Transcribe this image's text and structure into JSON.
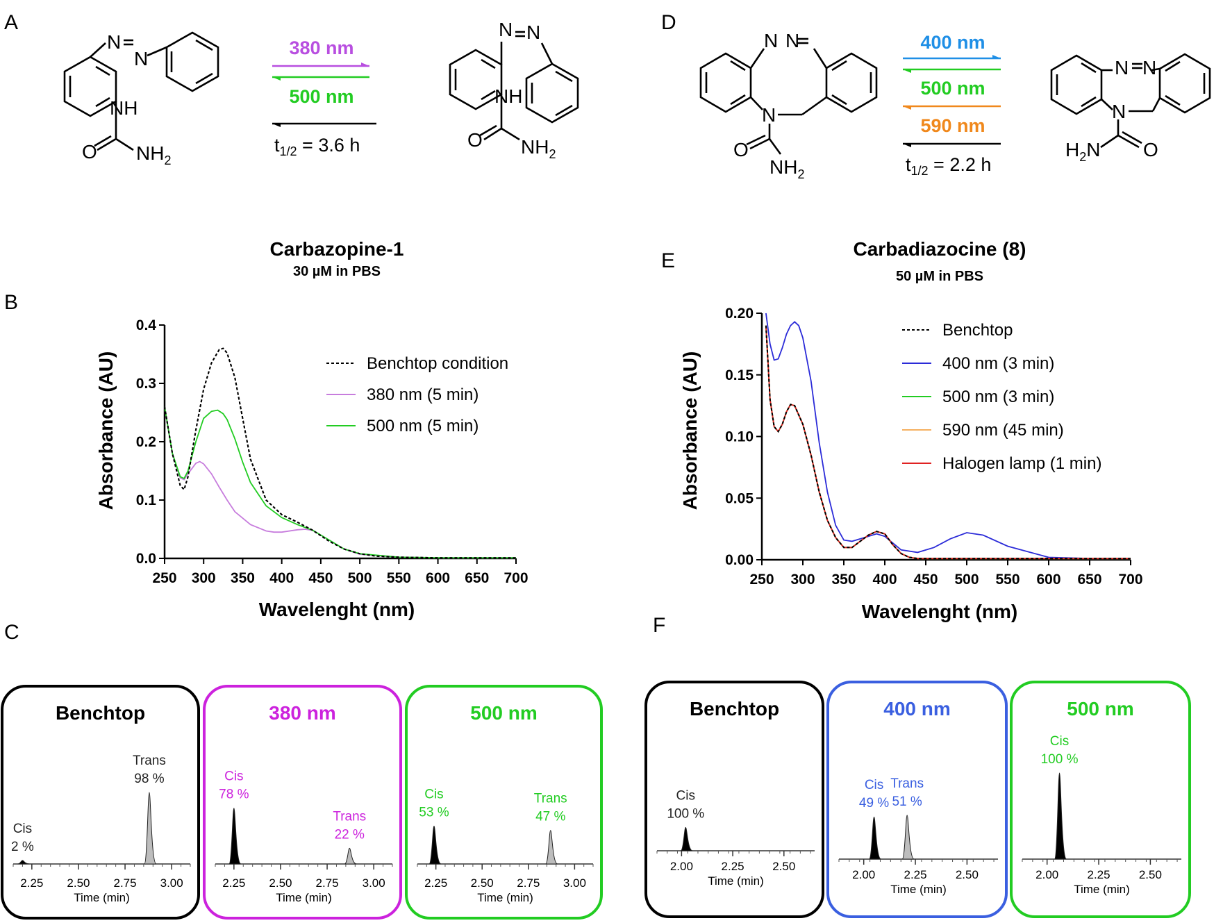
{
  "panels": {
    "A": "A",
    "B": "B",
    "C": "C",
    "D": "D",
    "E": "E",
    "F": "F"
  },
  "scheme_A": {
    "forward": "380 nm",
    "backward": "500 nm",
    "thermal": "t",
    "thermal_sub": "1/2",
    "thermal_rest": " = 3.6 h",
    "atoms": {
      "N": "N",
      "NH": "NH",
      "O": "O",
      "NH2": "NH",
      "sub2": "2"
    }
  },
  "scheme_D": {
    "arrow1": "400 nm",
    "arrow2": "500 nm",
    "arrow3": "590 nm",
    "thermal": "t",
    "thermal_sub": "1/2",
    "thermal_rest": " = 2.2 h",
    "atoms": {
      "N": "N",
      "O": "O",
      "NH2": "NH",
      "H2N": "H",
      "sub2": "2"
    }
  },
  "colors": {
    "purple": "#b84ee0",
    "green": "#22cc22",
    "blue": "#1f8fe6",
    "orange": "#f0881c",
    "magenta": "#cc22dd",
    "royal": "#3a5fe0",
    "red": "#e02222",
    "dark_blue": "#2b2bd8"
  },
  "chart_data": [
    {
      "type": "line",
      "title": "Carbazopine-1",
      "subtitle": "30 µM in PBS",
      "xlabel": "Wavelenght (nm)",
      "ylabel": "Absorbance (AU)",
      "xlim": [
        250,
        700
      ],
      "ylim": [
        0,
        0.4
      ],
      "xticks": [
        "250",
        "300",
        "350",
        "400",
        "450",
        "500",
        "550",
        "600",
        "650",
        "700"
      ],
      "yticks": [
        "0.0",
        "0.1",
        "0.2",
        "0.3",
        "0.4"
      ],
      "legend_position": "top-right",
      "series": [
        {
          "name": "Benchtop condition",
          "color": "#000000",
          "dash": true,
          "x": [
            250,
            260,
            270,
            275,
            280,
            290,
            300,
            310,
            320,
            325,
            330,
            340,
            350,
            360,
            380,
            400,
            420,
            440,
            460,
            480,
            500,
            520,
            550,
            600,
            650,
            700
          ],
          "y": [
            0.26,
            0.18,
            0.125,
            0.118,
            0.14,
            0.22,
            0.29,
            0.335,
            0.358,
            0.36,
            0.352,
            0.31,
            0.24,
            0.17,
            0.1,
            0.075,
            0.062,
            0.048,
            0.03,
            0.016,
            0.008,
            0.004,
            0.002,
            0.001,
            0.001,
            0.001
          ]
        },
        {
          "name": "380 nm (5 min)",
          "color": "#c77ddd",
          "dash": false,
          "x": [
            250,
            260,
            270,
            275,
            280,
            290,
            295,
            300,
            310,
            320,
            330,
            340,
            360,
            380,
            390,
            400,
            420,
            430,
            440,
            460,
            480,
            500,
            550,
            600,
            650,
            700
          ],
          "y": [
            0.26,
            0.18,
            0.138,
            0.135,
            0.145,
            0.163,
            0.166,
            0.162,
            0.145,
            0.122,
            0.1,
            0.08,
            0.058,
            0.047,
            0.045,
            0.045,
            0.049,
            0.05,
            0.048,
            0.032,
            0.016,
            0.007,
            0.002,
            0.001,
            0.001,
            0.001
          ]
        },
        {
          "name": "500 nm (5 min)",
          "color": "#22cc22",
          "dash": false,
          "x": [
            250,
            260,
            270,
            275,
            280,
            290,
            300,
            310,
            318,
            325,
            330,
            340,
            350,
            360,
            380,
            400,
            420,
            440,
            460,
            480,
            500,
            550,
            600,
            650,
            700
          ],
          "y": [
            0.26,
            0.18,
            0.14,
            0.137,
            0.15,
            0.2,
            0.24,
            0.252,
            0.254,
            0.248,
            0.238,
            0.205,
            0.165,
            0.13,
            0.09,
            0.07,
            0.058,
            0.048,
            0.032,
            0.016,
            0.008,
            0.002,
            0.001,
            0.001,
            0.001
          ]
        }
      ]
    },
    {
      "type": "line",
      "title": "Carbadiazocine (8)",
      "subtitle": "50 µM in PBS",
      "xlabel": "Wavelenght (nm)",
      "ylabel": "Absorbance (AU)",
      "xlim": [
        250,
        700
      ],
      "ylim": [
        0,
        0.2
      ],
      "xticks": [
        "250",
        "300",
        "350",
        "400",
        "450",
        "500",
        "550",
        "600",
        "650",
        "700"
      ],
      "yticks": [
        "0.00",
        "0.05",
        "0.10",
        "0.15",
        "0.20"
      ],
      "legend_position": "top-right",
      "series": [
        {
          "name": "Benchtop",
          "color": "#000000",
          "dash": true,
          "x": [
            255,
            260,
            265,
            270,
            275,
            280,
            285,
            290,
            300,
            310,
            320,
            330,
            340,
            350,
            360,
            370,
            380,
            390,
            400,
            410,
            420,
            430,
            440,
            460,
            480,
            500,
            550,
            600,
            650,
            700
          ],
          "y": [
            0.19,
            0.13,
            0.108,
            0.104,
            0.11,
            0.12,
            0.126,
            0.125,
            0.11,
            0.085,
            0.055,
            0.032,
            0.018,
            0.01,
            0.01,
            0.015,
            0.02,
            0.023,
            0.021,
            0.012,
            0.005,
            0.002,
            0.001,
            0.001,
            0.001,
            0.001,
            0.001,
            0.001,
            0.001,
            0.001
          ]
        },
        {
          "name": "400 nm (3 min)",
          "color": "#2b2bd8",
          "dash": false,
          "x": [
            255,
            260,
            265,
            270,
            275,
            280,
            285,
            290,
            295,
            300,
            310,
            320,
            330,
            340,
            350,
            360,
            380,
            390,
            400,
            420,
            440,
            460,
            480,
            500,
            520,
            550,
            600,
            650,
            700
          ],
          "y": [
            0.2,
            0.175,
            0.162,
            0.163,
            0.172,
            0.183,
            0.19,
            0.193,
            0.19,
            0.18,
            0.145,
            0.095,
            0.055,
            0.028,
            0.016,
            0.015,
            0.019,
            0.021,
            0.019,
            0.008,
            0.006,
            0.01,
            0.017,
            0.022,
            0.02,
            0.011,
            0.002,
            0.001,
            0.001
          ]
        },
        {
          "name": "500 nm (3 min)",
          "color": "#22cc22",
          "dash": false,
          "x": [
            255,
            260,
            265,
            270,
            275,
            280,
            285,
            290,
            300,
            310,
            320,
            330,
            340,
            350,
            360,
            370,
            380,
            390,
            400,
            410,
            420,
            430,
            440,
            460,
            480,
            500,
            550,
            600,
            650,
            700
          ],
          "y": [
            0.19,
            0.13,
            0.108,
            0.104,
            0.11,
            0.12,
            0.126,
            0.125,
            0.11,
            0.085,
            0.055,
            0.032,
            0.018,
            0.01,
            0.01,
            0.015,
            0.02,
            0.023,
            0.021,
            0.012,
            0.005,
            0.002,
            0.001,
            0.001,
            0.001,
            0.001,
            0.001,
            0.001,
            0.001,
            0.001
          ]
        },
        {
          "name": "590 nm (45 min)",
          "color": "#f5b060",
          "dash": false,
          "x": [
            255,
            260,
            265,
            270,
            275,
            280,
            285,
            290,
            300,
            310,
            320,
            330,
            340,
            350,
            360,
            370,
            380,
            390,
            400,
            410,
            420,
            430,
            440,
            460,
            480,
            500,
            550,
            600,
            650,
            700
          ],
          "y": [
            0.19,
            0.13,
            0.108,
            0.104,
            0.11,
            0.12,
            0.126,
            0.125,
            0.11,
            0.085,
            0.055,
            0.032,
            0.018,
            0.01,
            0.01,
            0.015,
            0.02,
            0.023,
            0.021,
            0.012,
            0.005,
            0.002,
            0.001,
            0.001,
            0.001,
            0.001,
            0.001,
            0.001,
            0.001,
            0.001
          ]
        },
        {
          "name": "Halogen lamp (1 min)",
          "color": "#e02222",
          "dash": false,
          "x": [
            255,
            260,
            265,
            270,
            275,
            280,
            285,
            290,
            300,
            310,
            320,
            330,
            340,
            350,
            360,
            370,
            380,
            390,
            400,
            410,
            420,
            430,
            440,
            460,
            480,
            500,
            550,
            600,
            650,
            700
          ],
          "y": [
            0.19,
            0.13,
            0.108,
            0.104,
            0.11,
            0.12,
            0.126,
            0.125,
            0.11,
            0.085,
            0.055,
            0.032,
            0.018,
            0.01,
            0.01,
            0.015,
            0.02,
            0.023,
            0.021,
            0.012,
            0.005,
            0.002,
            0.001,
            0.001,
            0.001,
            0.001,
            0.001,
            0.001,
            0.001,
            0.001
          ]
        }
      ]
    }
  ],
  "chromatograms_C": {
    "xlabel": "Time (min)",
    "xlim": [
      2.15,
      3.1
    ],
    "xticks": [
      "2.25",
      "2.50",
      "2.75",
      "3.00"
    ],
    "boxes": [
      {
        "title": "Benchtop",
        "color": "#000000",
        "peaks": [
          {
            "label": "Cis",
            "pct": "2 %",
            "t": 2.2,
            "h": 0.05,
            "fill": "#000000"
          },
          {
            "label": "Trans",
            "pct": "98 %",
            "t": 2.88,
            "h": 1.0,
            "fill": "#bdbdbd"
          }
        ]
      },
      {
        "title": "380 nm",
        "color": "#cc22dd",
        "peaks": [
          {
            "label": "Cis",
            "pct": "78 %",
            "t": 2.25,
            "h": 0.78,
            "fill": "#000000"
          },
          {
            "label": "Trans",
            "pct": "22 %",
            "t": 2.87,
            "h": 0.22,
            "fill": "#bdbdbd"
          }
        ]
      },
      {
        "title": "500 nm",
        "color": "#22cc22",
        "peaks": [
          {
            "label": "Cis",
            "pct": "53 %",
            "t": 2.24,
            "h": 0.53,
            "fill": "#000000"
          },
          {
            "label": "Trans",
            "pct": "47 %",
            "t": 2.87,
            "h": 0.47,
            "fill": "#bdbdbd"
          }
        ]
      }
    ]
  },
  "chromatograms_F": {
    "xlabel": "Time (min)",
    "xlim": [
      1.88,
      2.65
    ],
    "xticks": [
      "2.00",
      "2.25",
      "2.50"
    ],
    "boxes": [
      {
        "title": "Benchtop",
        "color": "#000000",
        "peaks": [
          {
            "label": "Cis",
            "pct": "100 %",
            "t": 2.02,
            "h": 0.3,
            "fill": "#000000"
          }
        ]
      },
      {
        "title": "400 nm",
        "color": "#3a5fe0",
        "peaks": [
          {
            "label": "Cis",
            "pct": "49 %",
            "t": 2.05,
            "h": 0.49,
            "fill": "#000000"
          },
          {
            "label": "Trans",
            "pct": "51 %",
            "t": 2.21,
            "h": 0.51,
            "fill": "#bdbdbd"
          }
        ]
      },
      {
        "title": "500 nm",
        "color": "#22cc22",
        "peaks": [
          {
            "label": "Cis",
            "pct": "100 %",
            "t": 2.06,
            "h": 1.0,
            "fill": "#000000"
          }
        ]
      }
    ]
  }
}
